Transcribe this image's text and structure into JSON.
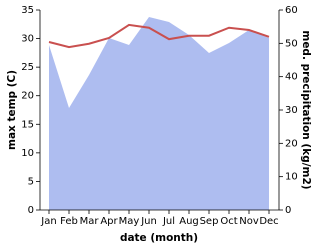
{
  "chart_data": {
    "type": "line",
    "categories": [
      "Jan",
      "Feb",
      "Mar",
      "Apr",
      "May",
      "Jun",
      "Jul",
      "Aug",
      "Sep",
      "Oct",
      "Nov",
      "Dec"
    ],
    "xlabel": "date (month)",
    "ylabel": "max temp (C)",
    "y2label": "med. precipitation (kg/m2)",
    "ylim": [
      0,
      35
    ],
    "yticks": [
      0,
      5,
      10,
      15,
      20,
      25,
      30,
      35
    ],
    "y2lim": [
      0,
      60
    ],
    "y2ticks": [
      0,
      10,
      20,
      30,
      40,
      50,
      60
    ],
    "series": [
      {
        "name": "max temp",
        "color": "#c9504f",
        "values": [
          29.4,
          28.5,
          29.1,
          30.1,
          32.4,
          31.9,
          29.9,
          30.5,
          30.5,
          31.9,
          31.5,
          30.3
        ]
      },
      {
        "name": "med. precipitation",
        "color": "#aebdf0",
        "axis": "y2",
        "fill": true,
        "values": [
          49.5,
          30.6,
          40.5,
          51.6,
          49.5,
          57.9,
          56.4,
          52.5,
          47.1,
          50.1,
          54,
          51.6
        ]
      }
    ]
  }
}
